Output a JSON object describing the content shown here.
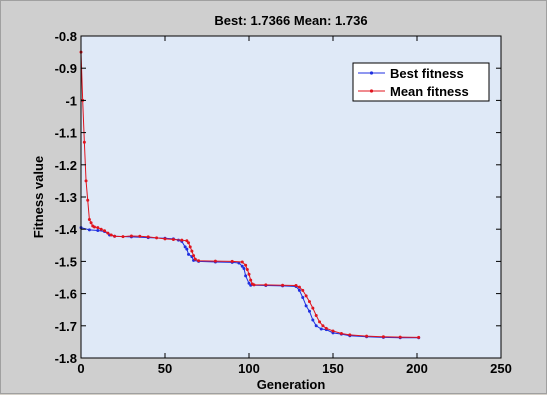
{
  "colors": {
    "figure_bg": "#cfcfcf",
    "axes_bg": "#dfe9f7",
    "best": "#1f2fe0",
    "mean": "#e0141e",
    "axis": "#000000"
  },
  "chart_data": {
    "type": "line",
    "title": "Best: 1.7366 Mean: 1.736",
    "xlabel": "Generation",
    "ylabel": "Fitness value",
    "xlim": [
      0,
      250
    ],
    "ylim": [
      -1.8,
      -0.8
    ],
    "xticks": [
      0,
      50,
      100,
      150,
      200,
      250
    ],
    "yticks": [
      -1.8,
      -1.7,
      -1.6,
      -1.5,
      -1.4,
      -1.3,
      -1.2,
      -1.1,
      -1,
      -0.9,
      -0.8
    ],
    "xtick_labels": [
      "0",
      "50",
      "100",
      "150",
      "200",
      "250"
    ],
    "ytick_labels": [
      "-1.8",
      "-1.7",
      "-1.6",
      "-1.5",
      "-1.4",
      "-1.3",
      "-1.2",
      "-1.1",
      "-1",
      "-0.9",
      "-0.8"
    ],
    "grid": false,
    "legend_position": "top-right",
    "series": [
      {
        "name": "Best fitness",
        "color": "#1f2fe0",
        "marker": "dot",
        "points": [
          [
            0,
            -1.395
          ],
          [
            5,
            -1.402
          ],
          [
            10,
            -1.404
          ],
          [
            14,
            -1.407
          ],
          [
            17,
            -1.418
          ],
          [
            20,
            -1.422
          ],
          [
            30,
            -1.424
          ],
          [
            40,
            -1.426
          ],
          [
            50,
            -1.428
          ],
          [
            55,
            -1.43
          ],
          [
            58,
            -1.434
          ],
          [
            60,
            -1.438
          ],
          [
            62,
            -1.455
          ],
          [
            63,
            -1.462
          ],
          [
            64,
            -1.478
          ],
          [
            66,
            -1.485
          ],
          [
            67,
            -1.497
          ],
          [
            70,
            -1.5
          ],
          [
            80,
            -1.502
          ],
          [
            90,
            -1.503
          ],
          [
            94,
            -1.505
          ],
          [
            96,
            -1.515
          ],
          [
            97,
            -1.522
          ],
          [
            98,
            -1.545
          ],
          [
            100,
            -1.568
          ],
          [
            101,
            -1.574
          ],
          [
            110,
            -1.575
          ],
          [
            120,
            -1.576
          ],
          [
            128,
            -1.578
          ],
          [
            130,
            -1.59
          ],
          [
            132,
            -1.612
          ],
          [
            134,
            -1.638
          ],
          [
            136,
            -1.655
          ],
          [
            138,
            -1.682
          ],
          [
            140,
            -1.7
          ],
          [
            143,
            -1.71
          ],
          [
            146,
            -1.712
          ],
          [
            150,
            -1.722
          ],
          [
            155,
            -1.726
          ],
          [
            160,
            -1.731
          ],
          [
            170,
            -1.734
          ],
          [
            180,
            -1.736
          ],
          [
            190,
            -1.737
          ],
          [
            201,
            -1.737
          ]
        ]
      },
      {
        "name": "Mean fitness",
        "color": "#e0141e",
        "marker": "dot",
        "points": [
          [
            0,
            -0.85
          ],
          [
            1,
            -1.0
          ],
          [
            2,
            -1.13
          ],
          [
            3,
            -1.25
          ],
          [
            4,
            -1.31
          ],
          [
            5,
            -1.37
          ],
          [
            6,
            -1.38
          ],
          [
            7,
            -1.39
          ],
          [
            8,
            -1.393
          ],
          [
            10,
            -1.395
          ],
          [
            12,
            -1.4
          ],
          [
            14,
            -1.405
          ],
          [
            16,
            -1.412
          ],
          [
            18,
            -1.418
          ],
          [
            20,
            -1.422
          ],
          [
            25,
            -1.423
          ],
          [
            30,
            -1.421
          ],
          [
            35,
            -1.422
          ],
          [
            40,
            -1.424
          ],
          [
            45,
            -1.427
          ],
          [
            50,
            -1.43
          ],
          [
            55,
            -1.432
          ],
          [
            60,
            -1.434
          ],
          [
            63,
            -1.436
          ],
          [
            64,
            -1.442
          ],
          [
            65,
            -1.455
          ],
          [
            66,
            -1.468
          ],
          [
            67,
            -1.482
          ],
          [
            68,
            -1.493
          ],
          [
            70,
            -1.498
          ],
          [
            80,
            -1.499
          ],
          [
            90,
            -1.5
          ],
          [
            96,
            -1.502
          ],
          [
            98,
            -1.512
          ],
          [
            99,
            -1.525
          ],
          [
            100,
            -1.54
          ],
          [
            101,
            -1.558
          ],
          [
            102,
            -1.57
          ],
          [
            103,
            -1.573
          ],
          [
            110,
            -1.573
          ],
          [
            120,
            -1.574
          ],
          [
            128,
            -1.575
          ],
          [
            130,
            -1.58
          ],
          [
            132,
            -1.59
          ],
          [
            134,
            -1.607
          ],
          [
            136,
            -1.625
          ],
          [
            138,
            -1.645
          ],
          [
            140,
            -1.668
          ],
          [
            142,
            -1.688
          ],
          [
            144,
            -1.7
          ],
          [
            146,
            -1.708
          ],
          [
            150,
            -1.716
          ],
          [
            155,
            -1.724
          ],
          [
            160,
            -1.728
          ],
          [
            170,
            -1.732
          ],
          [
            180,
            -1.734
          ],
          [
            190,
            -1.735
          ],
          [
            201,
            -1.736
          ]
        ]
      }
    ]
  }
}
